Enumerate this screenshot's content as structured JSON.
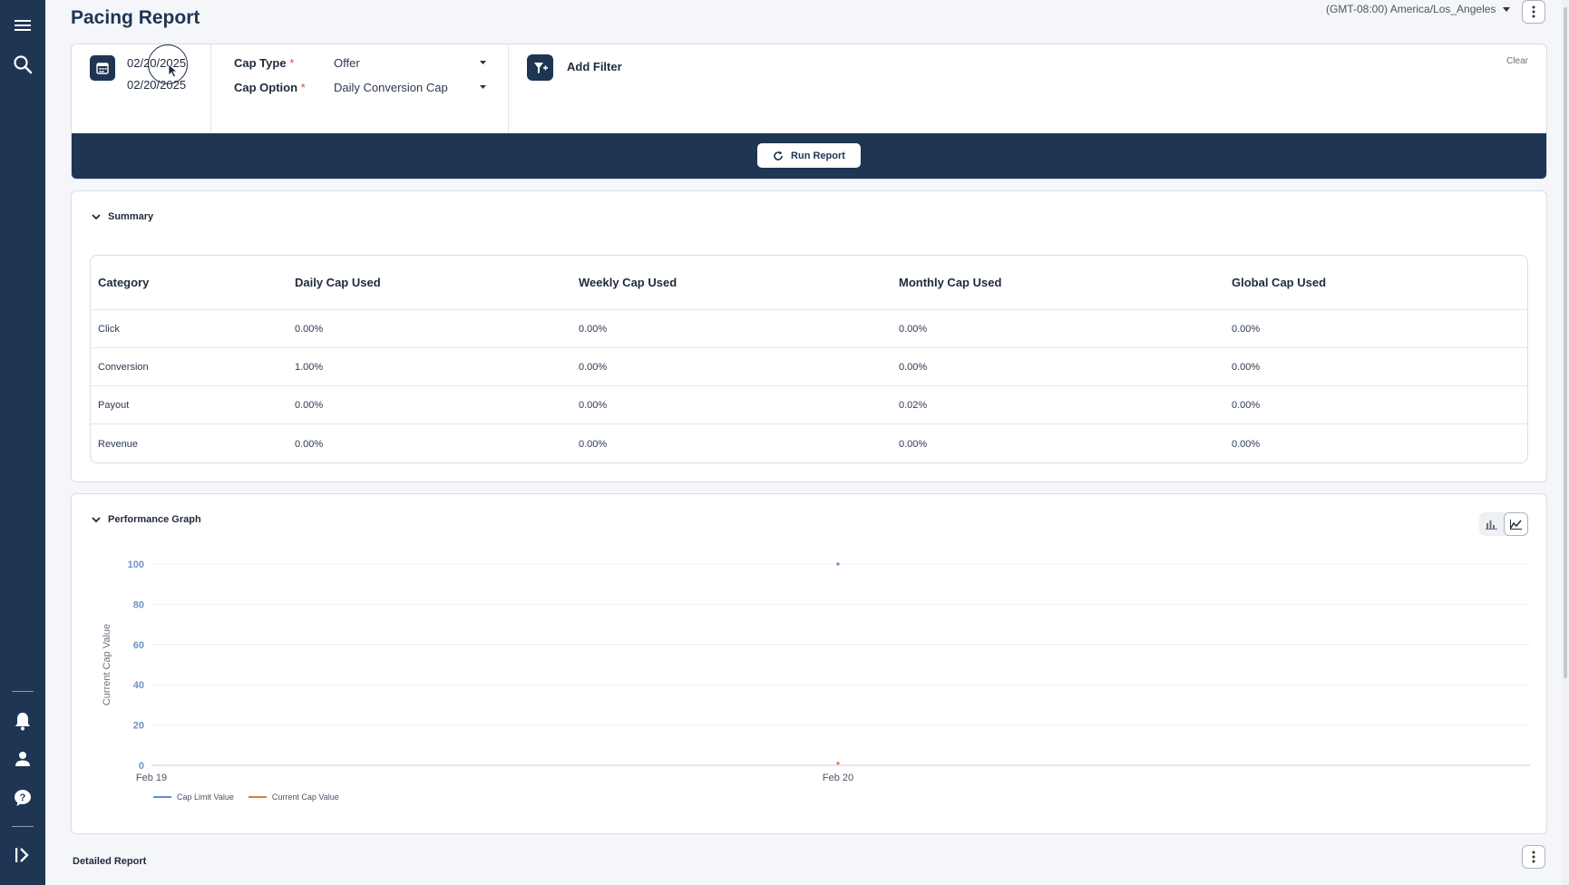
{
  "sidebar": {
    "items": [
      {
        "icon": "menu-icon"
      },
      {
        "icon": "search-icon"
      },
      {
        "icon": "bell-icon"
      },
      {
        "icon": "user-icon"
      },
      {
        "icon": "help-icon"
      },
      {
        "icon": "expand-icon"
      }
    ]
  },
  "header": {
    "title": "Pacing Report",
    "timezone": "(GMT-08:00) America/Los_Angeles"
  },
  "filters": {
    "date_start": "02/20/2025",
    "date_end": "02/20/2025",
    "cap_type_label": "Cap Type",
    "cap_type_value": "Offer",
    "cap_option_label": "Cap Option",
    "cap_option_value": "Daily Conversion Cap",
    "required_mark": "*",
    "add_filter": "Add Filter",
    "clear": "Clear",
    "run_report": "Run Report"
  },
  "summary": {
    "title": "Summary",
    "columns": [
      "Category",
      "Daily Cap Used",
      "Weekly Cap Used",
      "Monthly Cap Used",
      "Global Cap Used"
    ],
    "rows": [
      [
        "Click",
        "0.00%",
        "0.00%",
        "0.00%",
        "0.00%"
      ],
      [
        "Conversion",
        "1.00%",
        "0.00%",
        "0.00%",
        "0.00%"
      ],
      [
        "Payout",
        "0.00%",
        "0.00%",
        "0.02%",
        "0.00%"
      ],
      [
        "Revenue",
        "0.00%",
        "0.00%",
        "0.00%",
        "0.00%"
      ]
    ]
  },
  "performance": {
    "title": "Performance Graph"
  },
  "detailed": {
    "title": "Detailed Report"
  },
  "colors": {
    "navy": "#1e3553",
    "cap_limit": "#5b8fd1",
    "current_cap": "#e07b3c"
  },
  "chart_data": {
    "type": "line",
    "x": [
      "Feb 19",
      "Feb 20"
    ],
    "ylabel": "Current Cap Value",
    "ylim": [
      0,
      100
    ],
    "yticks": [
      0,
      20,
      40,
      60,
      80,
      100
    ],
    "grid": true,
    "legend_position": "bottom-left",
    "series": [
      {
        "name": "Cap Limit Value",
        "color": "#5b8fd1",
        "values": [
          null,
          100
        ]
      },
      {
        "name": "Current Cap Value",
        "color": "#e07b3c",
        "values": [
          null,
          1
        ]
      }
    ]
  }
}
